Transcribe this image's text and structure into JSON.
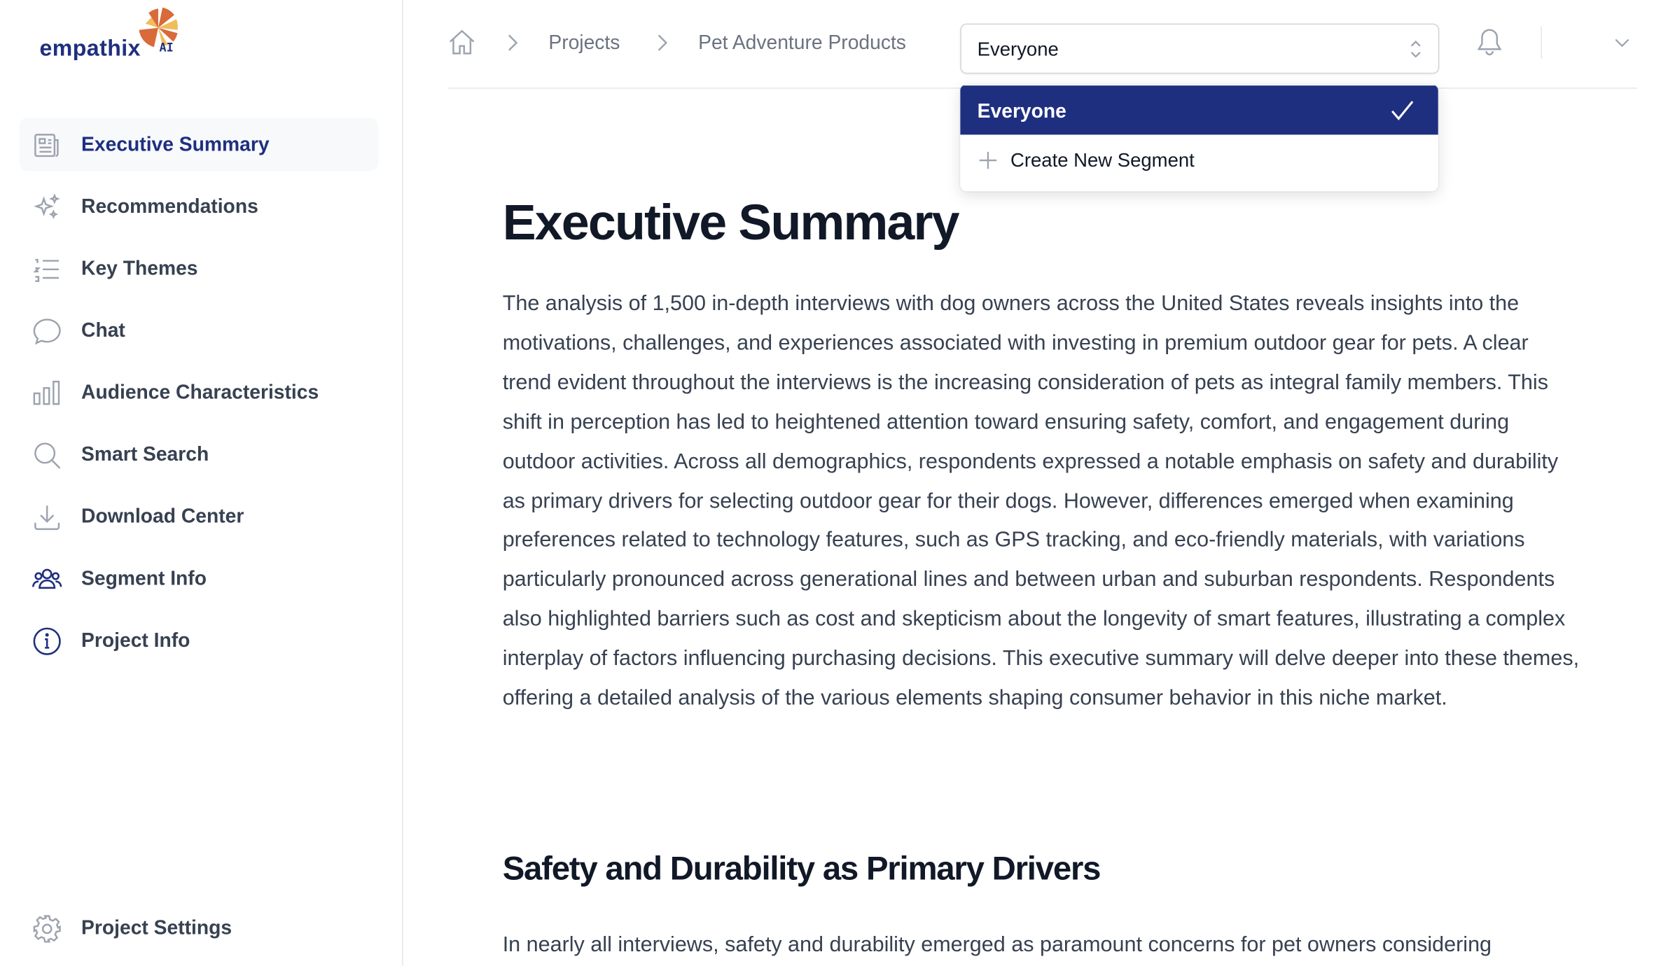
{
  "brand": {
    "name": "empathix",
    "suffix": "AI",
    "colors": {
      "navy": "#1f2f80",
      "orange": "#d96a3a",
      "yellow": "#efbd5a"
    }
  },
  "sidebar": {
    "items": [
      {
        "label": "Executive Summary",
        "icon": "newspaper-icon",
        "active": true
      },
      {
        "label": "Recommendations",
        "icon": "sparkles-icon"
      },
      {
        "label": "Key Themes",
        "icon": "list-icon"
      },
      {
        "label": "Chat",
        "icon": "chat-bubble-icon"
      },
      {
        "label": "Audience Characteristics",
        "icon": "bar-chart-icon"
      },
      {
        "label": "Smart Search",
        "icon": "search-icon"
      },
      {
        "label": "Download Center",
        "icon": "download-icon"
      },
      {
        "label": "Segment Info",
        "icon": "users-icon"
      },
      {
        "label": "Project Info",
        "icon": "info-icon"
      }
    ],
    "settings": {
      "label": "Project Settings",
      "icon": "gear-icon"
    }
  },
  "header": {
    "breadcrumb": [
      "Projects",
      "Pet Adventure Products"
    ],
    "segment_select": {
      "value": "Everyone",
      "options": [
        "Everyone"
      ],
      "create_label": "Create New Segment"
    }
  },
  "main": {
    "title": "Executive Summary",
    "paragraph": "The analysis of 1,500 in-depth interviews with dog owners across the United States reveals insights into the motivations, challenges, and experiences associated with investing in premium outdoor gear for pets. A clear trend evident throughout the interviews is the increasing consideration of pets as integral family members. This shift in perception has led to heightened attention toward ensuring safety, comfort, and engagement during outdoor activities. Across all demographics, respondents expressed a notable emphasis on safety and durability as primary drivers for selecting outdoor gear for their dogs. However, differences emerged when examining preferences related to technology features, such as GPS tracking, and eco-friendly materials, with variations particularly pronounced across generational lines and between urban and suburban respondents. Respondents also highlighted barriers such as cost and skepticism about the longevity of smart features, illustrating a complex interplay of factors influencing purchasing decisions. This executive summary will delve deeper into these themes, offering a detailed analysis of the various elements shaping consumer behavior in this niche market.",
    "section_title": "Safety and Durability as Primary Drivers",
    "section_paragraph": "In nearly all interviews, safety and durability emerged as paramount concerns for pet owners considering"
  }
}
